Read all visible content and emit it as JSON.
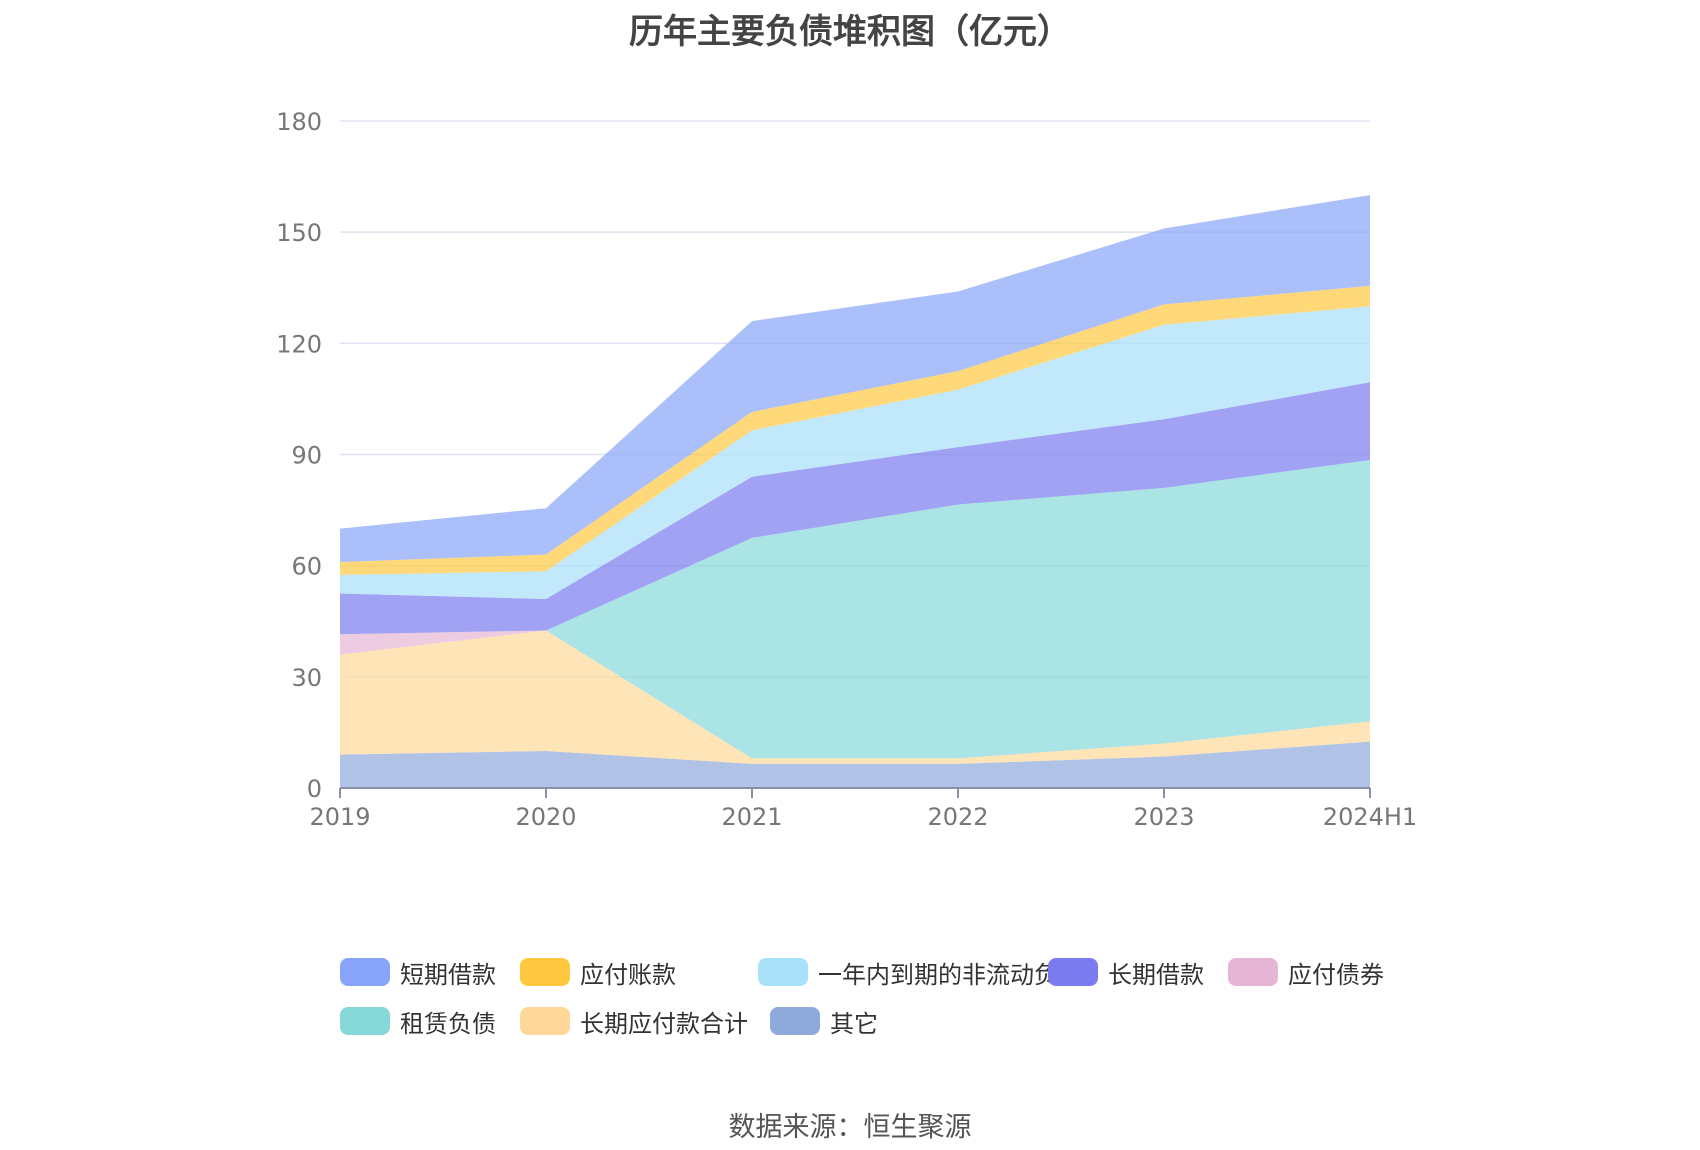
{
  "title": "历年主要负债堆积图（亿元）",
  "source": "数据来源：恒生聚源",
  "chart_data": {
    "type": "area",
    "stacked": true,
    "categories": [
      "2019",
      "2020",
      "2021",
      "2022",
      "2023",
      "2024H1"
    ],
    "ylim": [
      0,
      180
    ],
    "yticks": [
      0,
      30,
      60,
      90,
      120,
      150,
      180
    ],
    "grid": true,
    "legend_position": "bottom",
    "series": [
      {
        "name": "其它",
        "color": "#8eaadb",
        "values": [
          9.0,
          10.0,
          6.5,
          6.5,
          8.5,
          12.5
        ]
      },
      {
        "name": "长期应付款合计",
        "color": "#ffd899",
        "values": [
          27.0,
          32.5,
          1.5,
          1.5,
          3.5,
          5.5
        ]
      },
      {
        "name": "租赁负债",
        "color": "#86d8d8",
        "values": [
          0,
          0,
          59.5,
          68.5,
          69.0,
          70.5
        ]
      },
      {
        "name": "应付债券",
        "color": "#e6b6d6",
        "values": [
          5.5,
          0,
          0,
          0,
          0,
          0
        ]
      },
      {
        "name": "长期借款",
        "color": "#7b7bf0",
        "values": [
          11.0,
          8.5,
          16.5,
          15.5,
          18.5,
          21.0
        ]
      },
      {
        "name": "一年内到期的非流动负债",
        "color": "#a8e0fa",
        "values": [
          5.0,
          7.5,
          12.5,
          15.5,
          25.5,
          20.5
        ]
      },
      {
        "name": "应付账款",
        "color": "#ffc840",
        "values": [
          3.5,
          4.5,
          5.0,
          5.0,
          5.5,
          5.5
        ]
      },
      {
        "name": "短期借款",
        "color": "#88a4f8",
        "values": [
          9.0,
          12.5,
          24.5,
          21.5,
          20.5,
          24.5
        ]
      }
    ],
    "legend_order": [
      "短期借款",
      "应付账款",
      "一年内到期的非流动负债",
      "长期借款",
      "应付债券",
      "租赁负债",
      "长期应付款合计",
      "其它"
    ]
  }
}
